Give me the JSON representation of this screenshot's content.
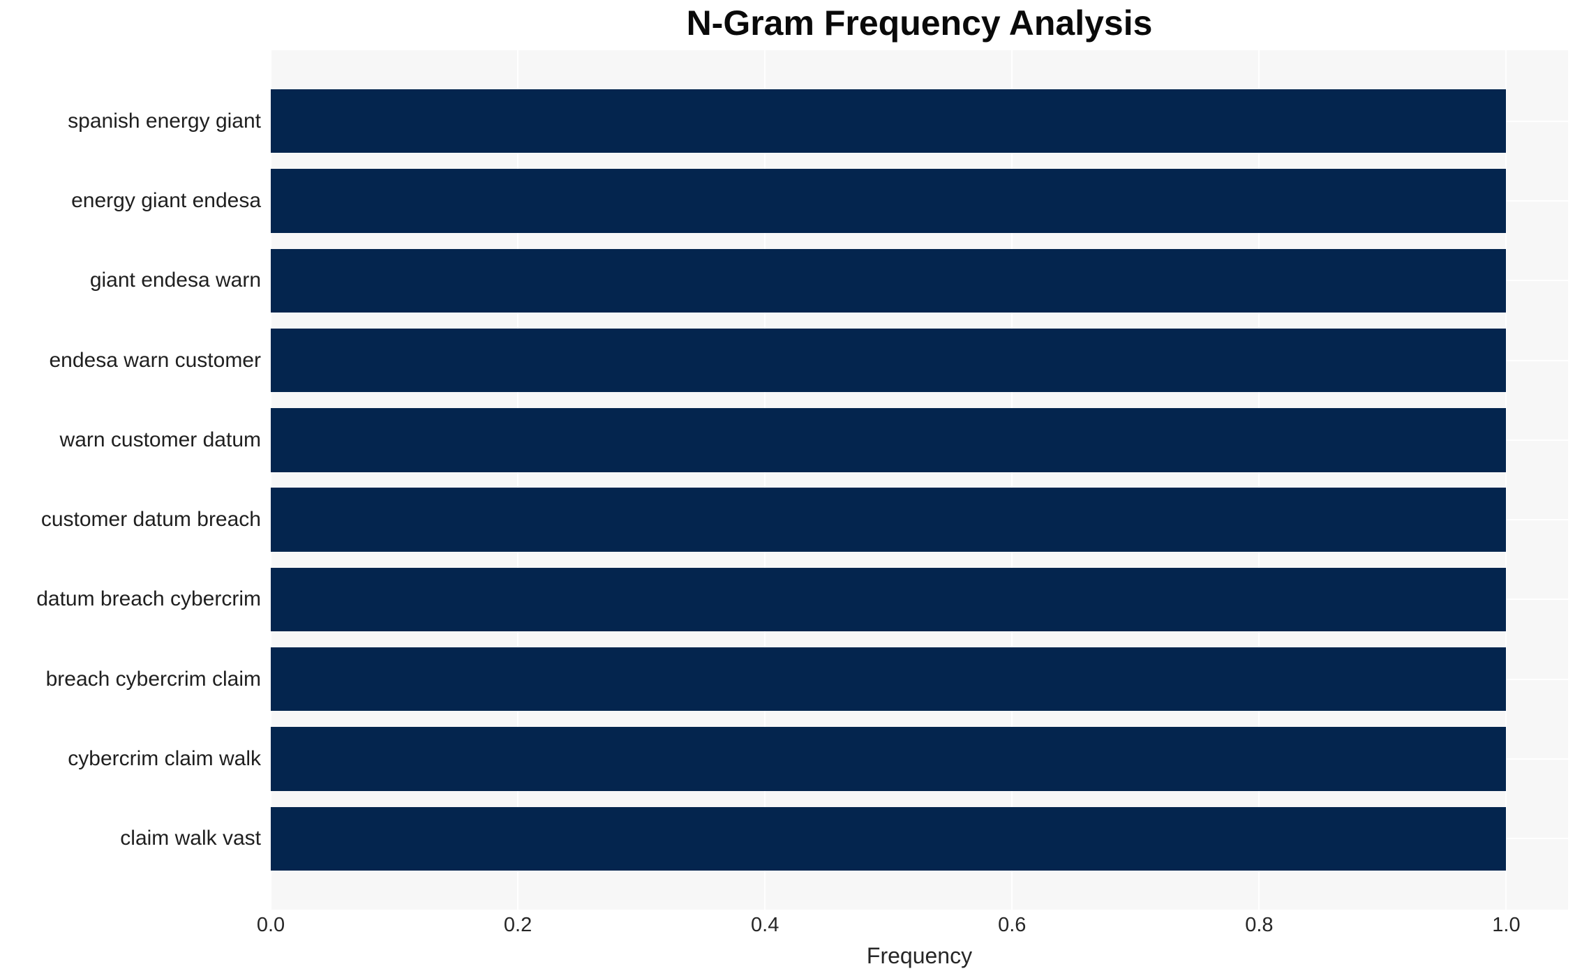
{
  "title": "N-Gram Frequency Analysis",
  "chart_data": {
    "type": "bar",
    "orientation": "horizontal",
    "title": "N-Gram Frequency Analysis",
    "categories": [
      "spanish energy giant",
      "energy giant endesa",
      "giant endesa warn",
      "endesa warn customer",
      "warn customer datum",
      "customer datum breach",
      "datum breach cybercrim",
      "breach cybercrim claim",
      "cybercrim claim walk",
      "claim walk vast"
    ],
    "values": [
      1.0,
      1.0,
      1.0,
      1.0,
      1.0,
      1.0,
      1.0,
      1.0,
      1.0,
      1.0
    ],
    "xlabel": "Frequency",
    "ylabel": "",
    "xlim": [
      0,
      1.05
    ],
    "xtick_labels": [
      "0.0",
      "0.2",
      "0.4",
      "0.6",
      "0.8",
      "1.0"
    ],
    "xtick_values": [
      0.0,
      0.2,
      0.4,
      0.6,
      0.8,
      1.0
    ],
    "grid": true,
    "legend_position": "none",
    "bar_color": "#04254e",
    "plot_background": "#f7f7f7",
    "grid_color": "#ffffff",
    "text_color": "#262626",
    "page_background": "#ffffff"
  }
}
